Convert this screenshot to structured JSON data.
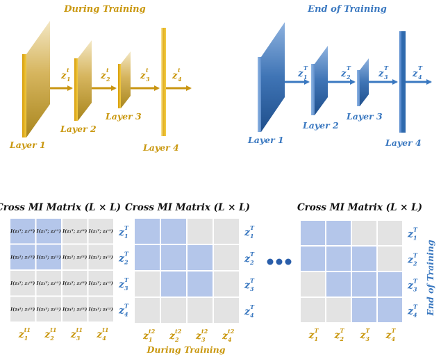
{
  "colors": {
    "gold": "#e0b020",
    "gold_text": "#c9970e",
    "blue": "#2f6aae",
    "blue_text": "#3a78c0",
    "cell_blue": "#b4c6ea",
    "cell_gray": "#e3e3e3",
    "dots": "#2a5eaa"
  },
  "top_left": {
    "title": "During Training",
    "layers": [
      "Layer 1",
      "Layer 2",
      "Layer 3",
      "Layer 4"
    ],
    "z_labels": [
      "z",
      "z",
      "z",
      "z"
    ],
    "z_sub": [
      "1",
      "2",
      "3",
      "4"
    ],
    "z_sup": "t"
  },
  "top_right": {
    "title": "End of Training",
    "layers": [
      "Layer 1",
      "Layer 2",
      "Layer 3",
      "Layer 4"
    ],
    "z_labels": [
      "z",
      "z",
      "z",
      "z"
    ],
    "z_sub": [
      "1",
      "2",
      "3",
      "4"
    ],
    "z_sup": "T"
  },
  "matrix_title": "Cross MI Matrix (L × L)",
  "matrix1": {
    "cells": [
      [
        "I(z₁ᵀ; z₁ᵗ¹)",
        "I(z₁ᵀ; z₂ᵗ¹)",
        "I(z₁ᵀ; z₃ᵗ¹)",
        "I(z₁ᵀ; z₄ᵗ¹)"
      ],
      [
        "I(z₂ᵀ; z₁ᵗ¹)",
        "I(z₂ᵀ; z₂ᵗ¹)",
        "I(z₂ᵀ; z₃ᵗ¹)",
        "I(z₂ᵀ; z₄ᵗ¹)"
      ],
      [
        "I(z₃ᵀ; z₁ᵗ¹)",
        "I(z₃ᵀ; z₂ᵗ¹)",
        "I(z₃ᵀ; z₃ᵗ¹)",
        "I(z₃ᵀ; z₄ᵗ¹)"
      ],
      [
        "I(z₄ᵀ; z₁ᵗ¹)",
        "I(z₄ᵀ; z₂ᵗ¹)",
        "I(z₄ᵀ; z₃ᵗ¹)",
        "I(z₄ᵀ; z₄ᵗ¹)"
      ]
    ],
    "highlight": [
      [
        1,
        1,
        0,
        0
      ],
      [
        1,
        1,
        0,
        0
      ],
      [
        0,
        0,
        0,
        0
      ],
      [
        0,
        0,
        0,
        0
      ]
    ],
    "col_sup": "t1"
  },
  "matrix2": {
    "highlight": [
      [
        1,
        1,
        0,
        0
      ],
      [
        1,
        1,
        1,
        0
      ],
      [
        0,
        1,
        1,
        0
      ],
      [
        0,
        0,
        0,
        0
      ]
    ],
    "col_sup": "t2"
  },
  "matrix3": {
    "highlight": [
      [
        1,
        1,
        0,
        0
      ],
      [
        1,
        1,
        1,
        0
      ],
      [
        0,
        1,
        1,
        1
      ],
      [
        0,
        0,
        1,
        1
      ]
    ],
    "col_sup": "T"
  },
  "row_sup": "T",
  "bottom_caption": "During Training",
  "side_caption": "End of Training"
}
